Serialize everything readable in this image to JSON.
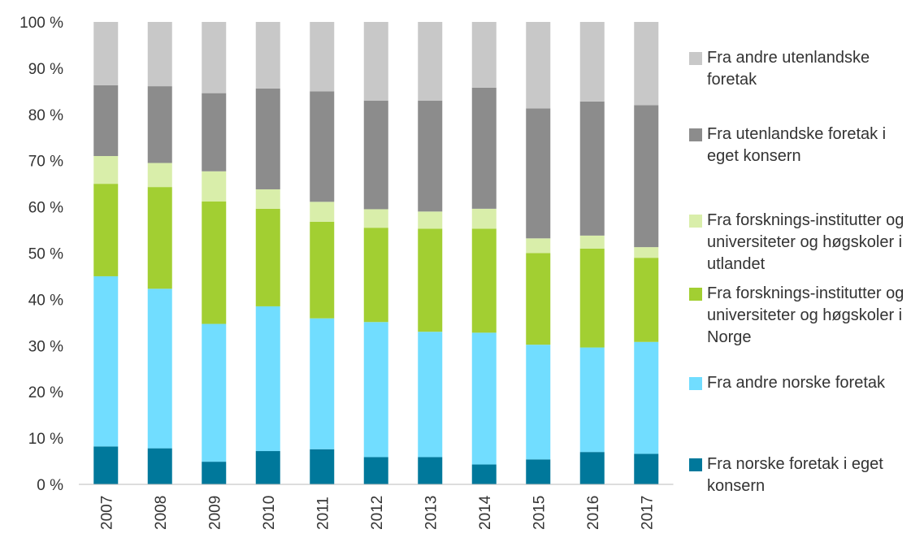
{
  "chart_data": {
    "type": "stacked_bar",
    "categories": [
      "2007",
      "2008",
      "2009",
      "2010",
      "2011",
      "2012",
      "2013",
      "2014",
      "2015",
      "2016",
      "2017"
    ],
    "series": [
      {
        "name": "Fra norske foretak i eget konsern",
        "color": "#00789b",
        "values": [
          8.2,
          7.8,
          4.9,
          7.2,
          7.6,
          5.9,
          5.9,
          4.3,
          5.4,
          7.0,
          6.6
        ]
      },
      {
        "name": "Fra andre norske foretak",
        "color": "#71ddff",
        "values": [
          36.8,
          34.5,
          29.8,
          31.3,
          28.3,
          29.2,
          27.1,
          28.5,
          24.8,
          22.6,
          24.2
        ]
      },
      {
        "name": "Fra forsknings-institutter og universiteter og høgskoler i Norge",
        "color": "#a2cf32",
        "values": [
          20.0,
          22.0,
          26.5,
          21.1,
          20.9,
          20.4,
          22.3,
          22.5,
          19.8,
          21.4,
          18.2
        ]
      },
      {
        "name": "Fra forsknings-institutter og universiteter og høgskoler i utlandet",
        "color": "#d9eeaa",
        "values": [
          6.0,
          5.2,
          6.5,
          4.2,
          4.3,
          4.0,
          3.7,
          4.3,
          3.2,
          2.8,
          2.3
        ]
      },
      {
        "name": "Fra utenlandske foretak i eget konsern",
        "color": "#8c8c8c",
        "values": [
          15.3,
          16.6,
          16.9,
          21.8,
          23.9,
          23.5,
          24.0,
          26.2,
          28.1,
          29.0,
          30.7
        ]
      },
      {
        "name": "Fra andre utenlandske foretak",
        "color": "#c8c8c8",
        "values": [
          13.7,
          13.9,
          15.4,
          14.4,
          15.0,
          17.0,
          17.0,
          14.2,
          18.7,
          17.2,
          18.0
        ]
      }
    ],
    "ylim": [
      0,
      100
    ],
    "yticks": [
      {
        "value": 0,
        "label": "0 %"
      },
      {
        "value": 10,
        "label": "10 %"
      },
      {
        "value": 20,
        "label": "20 %"
      },
      {
        "value": 30,
        "label": "30 %"
      },
      {
        "value": 40,
        "label": "40 %"
      },
      {
        "value": 50,
        "label": "50 %"
      },
      {
        "value": 60,
        "label": "60 %"
      },
      {
        "value": 70,
        "label": "70 %"
      },
      {
        "value": 80,
        "label": "80 %"
      },
      {
        "value": 90,
        "label": "90 %"
      },
      {
        "value": 100,
        "label": "100 %"
      }
    ],
    "legend": "right"
  }
}
